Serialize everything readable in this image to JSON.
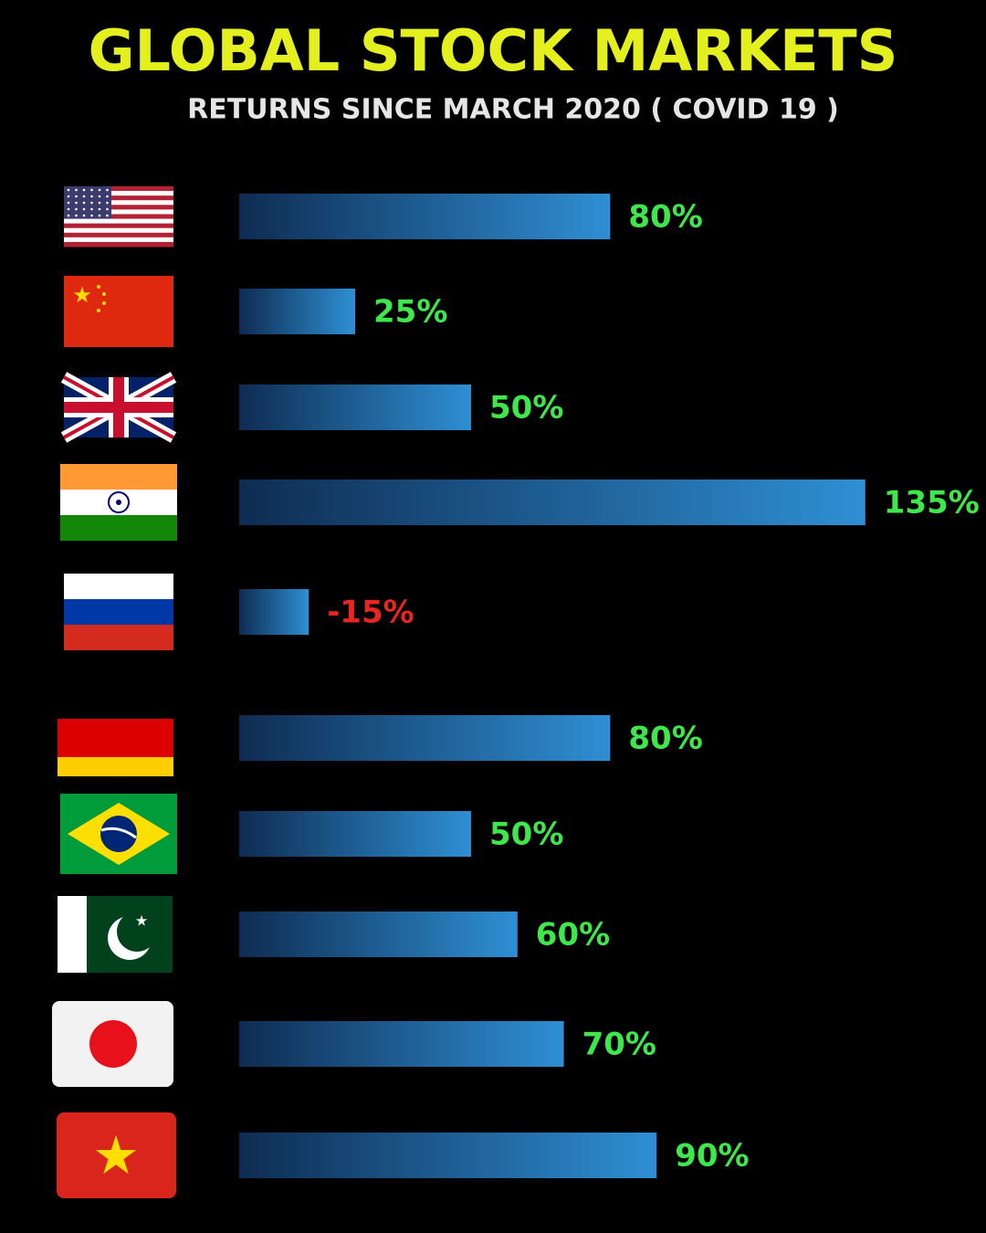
{
  "chart_data": {
    "type": "bar",
    "title": "GLOBAL STOCK MARKETS",
    "subtitle": "RETURNS SINCE MARCH 2020 ( COVID 19 )",
    "values": [
      80,
      25,
      50,
      135,
      -15,
      80,
      50,
      60,
      70,
      90
    ],
    "value_labels": [
      "80%",
      "25%",
      "50%",
      "135%",
      "-15%",
      "80%",
      "50%",
      "60%",
      "70%",
      "90%"
    ],
    "color": "#2f8fd4",
    "label_color": "#3ee84a",
    "negative_label_color": "#e8251f",
    "title_color": "#e4ef1e"
  }
}
